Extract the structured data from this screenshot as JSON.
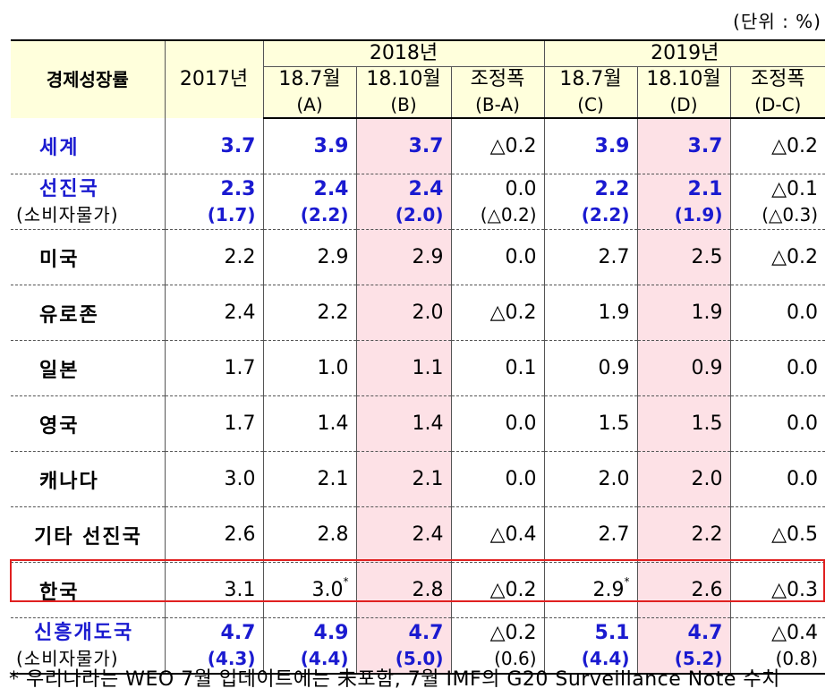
{
  "unit_label": "(단위 : %)",
  "header": {
    "row_label": "경제성장률",
    "col_2017": "2017년",
    "year_2018": "2018년",
    "year_2019": "2019년",
    "cols": [
      {
        "l1": "18.7월",
        "l2": "(A)"
      },
      {
        "l1": "18.10월",
        "l2": "(B)"
      },
      {
        "l1": "조정폭",
        "l2": "(B-A)"
      },
      {
        "l1": "18.7월",
        "l2": "(C)"
      },
      {
        "l1": "18.10월",
        "l2": "(D)"
      },
      {
        "l1": "조정폭",
        "l2": "(D-C)"
      }
    ]
  },
  "rows": [
    {
      "name": "세계",
      "v": [
        "3.7",
        "3.9",
        "3.7",
        "△0.2",
        "3.9",
        "3.7",
        "△0.2"
      ]
    },
    {
      "name": "선진국",
      "sub": "(소비자물가)",
      "v": [
        "2.3",
        "2.4",
        "2.4",
        "0.0",
        "2.2",
        "2.1",
        "△0.1"
      ],
      "s": [
        "(1.7)",
        "(2.2)",
        "(2.0)",
        "(△0.2)",
        "(2.2)",
        "(1.9)",
        "(△0.3)"
      ]
    },
    {
      "name": "미국",
      "v": [
        "2.2",
        "2.9",
        "2.9",
        "0.0",
        "2.7",
        "2.5",
        "△0.2"
      ]
    },
    {
      "name": "유로존",
      "v": [
        "2.4",
        "2.2",
        "2.0",
        "△0.2",
        "1.9",
        "1.9",
        "0.0"
      ]
    },
    {
      "name": "일본",
      "v": [
        "1.7",
        "1.0",
        "1.1",
        "0.1",
        "0.9",
        "0.9",
        "0.0"
      ]
    },
    {
      "name": "영국",
      "v": [
        "1.7",
        "1.4",
        "1.4",
        "0.0",
        "1.5",
        "1.5",
        "0.0"
      ]
    },
    {
      "name": "캐나다",
      "v": [
        "3.0",
        "2.1",
        "2.1",
        "0.0",
        "2.0",
        "2.0",
        "0.0"
      ]
    },
    {
      "name": "기타 선진국",
      "v": [
        "2.6",
        "2.8",
        "2.4",
        "△0.4",
        "2.7",
        "2.2",
        "△0.5"
      ]
    },
    {
      "name": "한국",
      "v": [
        "3.1",
        "3.0",
        "2.8",
        "△0.2",
        "2.9",
        "2.6",
        "△0.3"
      ],
      "star": "*"
    },
    {
      "name": "신흥개도국",
      "sub": "(소비자물가)",
      "v": [
        "4.7",
        "4.9",
        "4.7",
        "△0.2",
        "5.1",
        "4.7",
        "△0.4"
      ],
      "s": [
        "(4.3)",
        "(4.4)",
        "(5.0)",
        "(0.6)",
        "(4.4)",
        "(5.2)",
        "(0.8)"
      ]
    }
  ],
  "footnote": "* 우리나라는 WEO 7월 업데이트에는 未포함, 7월 IMF의 G20 Surveillance Note 수치",
  "colors": {
    "blue": "#1a1ad0",
    "pink": "#fde1e6",
    "header": "#ffffdc",
    "highlight_border": "#e02020"
  }
}
